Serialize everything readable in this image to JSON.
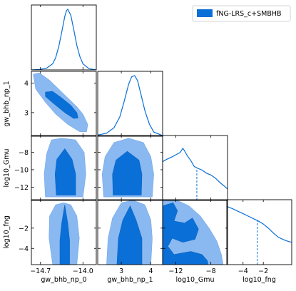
{
  "chart_data": {
    "type": "corner",
    "legend": {
      "label": "fNG-LRS_c+SMBHB",
      "color": "#0a6fd6",
      "position": "top-right"
    },
    "colors": {
      "inner": "#0a6fd6",
      "outer": "#8ab8f0",
      "line": "#0a6fd6"
    },
    "parameters": [
      {
        "name": "gw_bhb_np_0",
        "range": [
          -14.85,
          -13.78
        ],
        "ticks": [
          -14.7,
          -14.0
        ],
        "tick_labels": [
          "−14.7",
          "−14.0"
        ]
      },
      {
        "name": "gw_bhb_np_1",
        "range": [
          2.2,
          4.4
        ],
        "ticks": [
          3,
          4
        ],
        "tick_labels": [
          "3",
          "4"
        ]
      },
      {
        "name": "log10_Gmu",
        "range": [
          -13.5,
          -6.1
        ],
        "ticks": [
          -8,
          -10,
          -12
        ],
        "x_ticks": [
          -12,
          -8
        ],
        "tick_labels": [
          "−8",
          "−10",
          "−12"
        ],
        "x_tick_labels": [
          "−12",
          "−8"
        ]
      },
      {
        "name": "log10_fng",
        "range": [
          -5.6,
          0.8
        ],
        "ticks": [
          -2,
          -4
        ],
        "tick_labels": [
          "−2",
          "−4"
        ]
      }
    ],
    "diagonal": [
      {
        "param": "gw_bhb_np_0",
        "x": [
          -14.85,
          -14.7,
          -14.6,
          -14.5,
          -14.45,
          -14.4,
          -14.35,
          -14.3,
          -14.27,
          -14.25,
          -14.2,
          -14.15,
          -14.1,
          -14.05,
          -14.0,
          -13.9,
          -13.78
        ],
        "density": [
          0.0,
          0.01,
          0.03,
          0.1,
          0.2,
          0.38,
          0.62,
          0.88,
          0.98,
          1.0,
          0.9,
          0.66,
          0.4,
          0.22,
          0.1,
          0.02,
          0.0
        ]
      },
      {
        "param": "gw_bhb_np_1",
        "x": [
          2.2,
          2.5,
          2.75,
          2.95,
          3.1,
          3.25,
          3.35,
          3.45,
          3.55,
          3.65,
          3.8,
          3.95,
          4.1,
          4.4
        ],
        "density": [
          0.02,
          0.05,
          0.14,
          0.32,
          0.58,
          0.86,
          0.98,
          1.0,
          0.92,
          0.72,
          0.42,
          0.2,
          0.07,
          0.01
        ]
      },
      {
        "param": "log10_Gmu",
        "x": [
          -13.5,
          -13.0,
          -12.4,
          -11.9,
          -11.5,
          -11.2,
          -11.0,
          -10.7,
          -10.3,
          -9.9,
          -9.5,
          -9.0,
          -8.5,
          -8.0,
          -7.5,
          -7.0,
          -6.5,
          -6.1
        ],
        "density": [
          0.64,
          0.68,
          0.72,
          0.76,
          0.79,
          0.86,
          0.82,
          0.74,
          0.66,
          0.56,
          0.53,
          0.5,
          0.45,
          0.42,
          0.37,
          0.3,
          0.24,
          0.19
        ],
        "upper_limit": -9.6
      },
      {
        "param": "log10_fng",
        "x": [
          -5.6,
          -5.0,
          -4.5,
          -4.0,
          -3.5,
          -3.0,
          -2.5,
          -2.0,
          -1.5,
          -1.0,
          -0.5,
          0.0,
          0.5,
          0.8
        ],
        "density": [
          0.96,
          0.92,
          0.88,
          0.84,
          0.8,
          0.76,
          0.72,
          0.67,
          0.6,
          0.52,
          0.45,
          0.41,
          0.38,
          0.37
        ],
        "upper_limit": -2.6
      }
    ],
    "contours": [
      {
        "x": "gw_bhb_np_0",
        "y": "gw_bhb_np_1",
        "outer": [
          [
            -14.82,
            4.3
          ],
          [
            -14.72,
            4.35
          ],
          [
            -14.55,
            4.1
          ],
          [
            -14.4,
            3.8
          ],
          [
            -14.25,
            3.5
          ],
          [
            -14.1,
            3.2
          ],
          [
            -14.0,
            2.95
          ],
          [
            -13.92,
            2.6
          ],
          [
            -13.94,
            2.35
          ],
          [
            -14.05,
            2.35
          ],
          [
            -14.25,
            2.6
          ],
          [
            -14.45,
            2.95
          ],
          [
            -14.62,
            3.35
          ],
          [
            -14.78,
            3.8
          ]
        ],
        "inner": [
          [
            -14.62,
            3.7
          ],
          [
            -14.5,
            3.72
          ],
          [
            -14.35,
            3.5
          ],
          [
            -14.2,
            3.25
          ],
          [
            -14.1,
            3.0
          ],
          [
            -14.08,
            2.82
          ],
          [
            -14.15,
            2.8
          ],
          [
            -14.3,
            3.0
          ],
          [
            -14.48,
            3.3
          ],
          [
            -14.62,
            3.55
          ]
        ]
      },
      {
        "x": "gw_bhb_np_0",
        "y": "log10_Gmu",
        "outer": [
          [
            -14.62,
            -13.1
          ],
          [
            -14.64,
            -10.5
          ],
          [
            -14.6,
            -8.2
          ],
          [
            -14.52,
            -6.6
          ],
          [
            -14.35,
            -6.4
          ],
          [
            -14.12,
            -6.6
          ],
          [
            -13.98,
            -8.0
          ],
          [
            -13.95,
            -10.5
          ],
          [
            -14.0,
            -13.1
          ]
        ],
        "inner": [
          [
            -14.44,
            -12.9
          ],
          [
            -14.46,
            -10.5
          ],
          [
            -14.43,
            -8.8
          ],
          [
            -14.3,
            -7.6
          ],
          [
            -14.18,
            -8.8
          ],
          [
            -14.12,
            -10.5
          ],
          [
            -14.12,
            -12.9
          ]
        ]
      },
      {
        "x": "gw_bhb_np_1",
        "y": "log10_Gmu",
        "outer": [
          [
            2.4,
            -13.1
          ],
          [
            2.35,
            -10.5
          ],
          [
            2.45,
            -8.5
          ],
          [
            2.75,
            -6.9
          ],
          [
            3.25,
            -6.4
          ],
          [
            3.75,
            -6.9
          ],
          [
            4.0,
            -8.5
          ],
          [
            4.1,
            -10.5
          ],
          [
            4.05,
            -13.1
          ]
        ],
        "inner": [
          [
            2.72,
            -12.9
          ],
          [
            2.7,
            -10.5
          ],
          [
            2.82,
            -8.9
          ],
          [
            3.2,
            -7.9
          ],
          [
            3.6,
            -8.9
          ],
          [
            3.7,
            -10.5
          ],
          [
            3.68,
            -12.9
          ]
        ]
      },
      {
        "x": "gw_bhb_np_0",
        "y": "log10_fng",
        "outer": [
          [
            -14.5,
            -5.6
          ],
          [
            -14.56,
            -3.0
          ],
          [
            -14.55,
            -0.8
          ],
          [
            -14.45,
            0.3
          ],
          [
            -14.32,
            0.5
          ],
          [
            -14.2,
            0.3
          ],
          [
            -14.1,
            -0.8
          ],
          [
            -14.06,
            -3.0
          ],
          [
            -14.1,
            -5.6
          ]
        ],
        "inner": [
          [
            -14.38,
            -5.6
          ],
          [
            -14.38,
            -3.2
          ],
          [
            -14.35,
            -1.5
          ],
          [
            -14.3,
            0.3
          ],
          [
            -14.25,
            -1.5
          ],
          [
            -14.22,
            -3.2
          ],
          [
            -14.22,
            -5.6
          ]
        ]
      },
      {
        "x": "gw_bhb_np_1",
        "y": "log10_fng",
        "outer": [
          [
            2.5,
            -5.6
          ],
          [
            2.55,
            -3.0
          ],
          [
            2.7,
            -1.0
          ],
          [
            3.0,
            0.5
          ],
          [
            3.4,
            0.75
          ],
          [
            3.8,
            0.3
          ],
          [
            4.0,
            -1.2
          ],
          [
            4.05,
            -3.0
          ],
          [
            4.0,
            -5.6
          ]
        ],
        "inner": [
          [
            2.85,
            -5.6
          ],
          [
            2.9,
            -3.0
          ],
          [
            3.05,
            -1.2
          ],
          [
            3.3,
            0.2
          ],
          [
            3.5,
            -1.2
          ],
          [
            3.7,
            -3.0
          ],
          [
            3.7,
            -5.6
          ]
        ]
      },
      {
        "x": "log10_Gmu",
        "y": "log10_fng",
        "outer": [
          [
            -13.5,
            -5.6
          ],
          [
            -13.5,
            0.8
          ],
          [
            -12.0,
            0.8
          ],
          [
            -10.5,
            0.2
          ],
          [
            -9.2,
            -0.8
          ],
          [
            -8.2,
            -2.0
          ],
          [
            -7.3,
            -3.3
          ],
          [
            -6.8,
            -4.6
          ],
          [
            -6.6,
            -5.6
          ]
        ],
        "inner": [
          [
            -13.5,
            -5.6
          ],
          [
            -13.5,
            0.2
          ],
          [
            -12.3,
            0.5
          ],
          [
            -11.8,
            -0.3
          ],
          [
            -12.2,
            -1.3
          ],
          [
            -11.0,
            -1.5
          ],
          [
            -10.1,
            -1.0
          ],
          [
            -9.4,
            -2.1
          ],
          [
            -9.8,
            -3.1
          ],
          [
            -11.2,
            -3.4
          ],
          [
            -12.4,
            -3.0
          ],
          [
            -12.9,
            -3.8
          ],
          [
            -12.2,
            -4.6
          ],
          [
            -10.3,
            -4.3
          ],
          [
            -9.0,
            -4.6
          ],
          [
            -8.4,
            -5.2
          ],
          [
            -8.3,
            -5.6
          ]
        ]
      }
    ]
  }
}
